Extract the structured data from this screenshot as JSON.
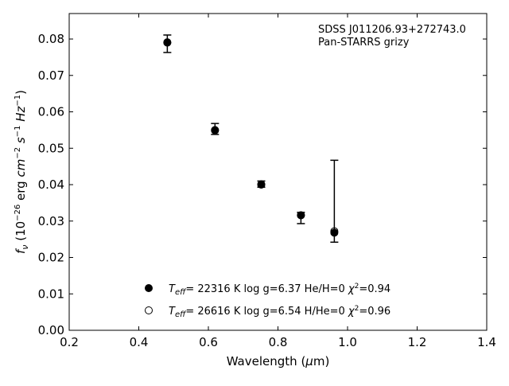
{
  "chart_data": {
    "type": "scatter",
    "title": "",
    "xlabel": "Wavelength (μm)",
    "ylabel": "fν (10⁻²⁶ erg cm⁻² s⁻¹ Hz⁻¹)",
    "xlim": [
      0.2,
      1.4
    ],
    "ylim": [
      0.0,
      0.087
    ],
    "xticks": [
      0.2,
      0.4,
      0.6,
      0.8,
      1.0,
      1.2,
      1.4
    ],
    "yticks": [
      0.0,
      0.01,
      0.02,
      0.03,
      0.04,
      0.05,
      0.06,
      0.07,
      0.08
    ],
    "grid": false,
    "legend_position": "bottom-center",
    "annotations": [
      "SDSS J011206.93+272743.0",
      "Pan-STARRS grizy"
    ],
    "observed": {
      "name": "Pan-STARRS grizy",
      "x": [
        0.482,
        0.619,
        0.752,
        0.866,
        0.962
      ],
      "y": [
        0.0791,
        0.055,
        0.04,
        0.0315,
        0.0267
      ],
      "yerr_low": [
        0.0028,
        0.0012,
        0.0007,
        0.0022,
        0.0025
      ],
      "yerr_high": [
        0.002,
        0.0018,
        0.001,
        0.0009,
        0.02
      ]
    },
    "series": [
      {
        "name": "Teff= 22316 K  log g=6.37  He/H=0  χ²=0.94",
        "marker": "filled-circle",
        "x": [
          0.482,
          0.619,
          0.752,
          0.866,
          0.962
        ],
        "y": [
          0.079,
          0.055,
          0.0401,
          0.0316,
          0.0268
        ]
      },
      {
        "name": "Teff= 26616 K  log g=6.54  H/He=0  χ²=0.96",
        "marker": "open-circle",
        "x": [
          0.482,
          0.619,
          0.752,
          0.866,
          0.962
        ],
        "y": [
          0.0791,
          0.0549,
          0.04,
          0.0316,
          0.0272
        ]
      }
    ],
    "legend": [
      {
        "marker": "filled-circle",
        "teff": "22316 K",
        "logg": "log g=6.37",
        "comp": "He/H=0",
        "chi": "=0.94"
      },
      {
        "marker": "open-circle",
        "teff": "26616 K",
        "logg": "log g=6.54",
        "comp": "H/He=0",
        "chi": "=0.96"
      }
    ]
  }
}
